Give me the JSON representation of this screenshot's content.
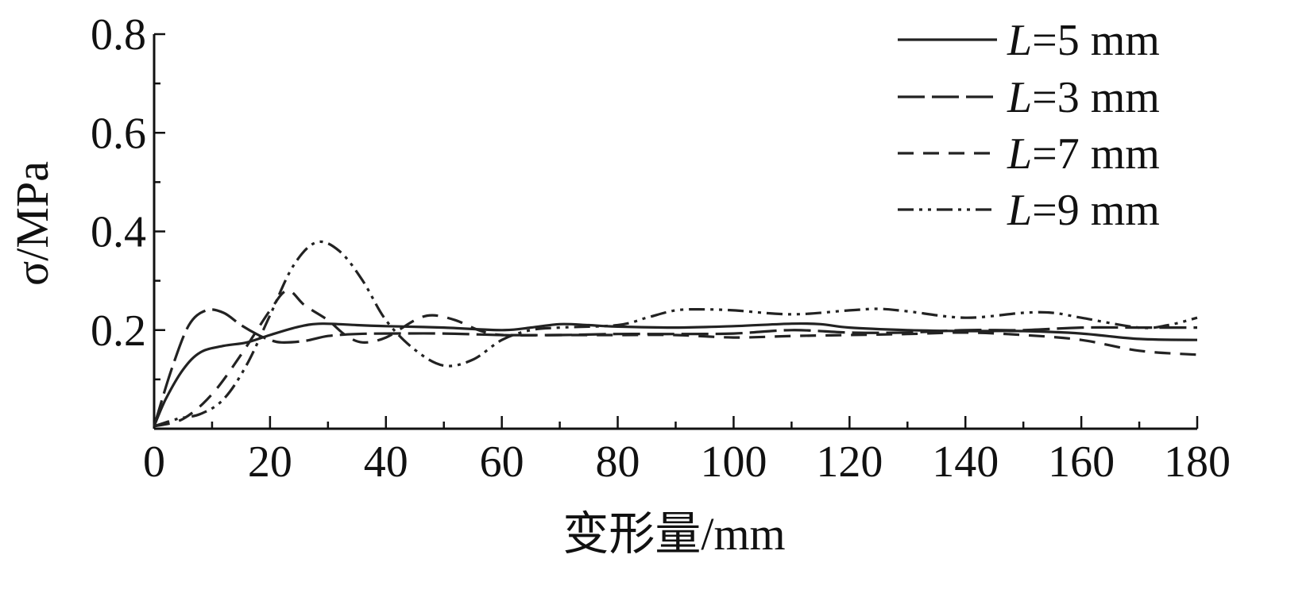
{
  "chart_data": {
    "type": "line",
    "title": "",
    "xlabel": "变形量/mm",
    "ylabel": "σ/MPa",
    "xlim": [
      0,
      180
    ],
    "ylim": [
      0,
      0.8
    ],
    "xticks": [
      0,
      20,
      40,
      60,
      80,
      100,
      120,
      140,
      160,
      180
    ],
    "xtick_labels": [
      "0",
      "20",
      "40",
      "60",
      "80",
      "100",
      "120",
      "140",
      "160",
      "180"
    ],
    "yticks": [
      0.2,
      0.4,
      0.6,
      0.8
    ],
    "ytick_labels": [
      "0.2",
      "0.4",
      "0.6",
      "0.8"
    ],
    "x_minor_step": 10,
    "y_minor_step": 0.1,
    "grid": false,
    "legend_position": "top-right",
    "series": [
      {
        "name": "L=5 mm",
        "legend_italic": "L",
        "legend_rest": "=5 mm",
        "dash": "solid",
        "points": [
          [
            0,
            0.005
          ],
          [
            2,
            0.06
          ],
          [
            5,
            0.12
          ],
          [
            8,
            0.155
          ],
          [
            12,
            0.168
          ],
          [
            16,
            0.175
          ],
          [
            20,
            0.19
          ],
          [
            25,
            0.207
          ],
          [
            29,
            0.213
          ],
          [
            35,
            0.21
          ],
          [
            40,
            0.208
          ],
          [
            50,
            0.205
          ],
          [
            60,
            0.2
          ],
          [
            65,
            0.205
          ],
          [
            70,
            0.212
          ],
          [
            75,
            0.21
          ],
          [
            80,
            0.207
          ],
          [
            90,
            0.205
          ],
          [
            100,
            0.208
          ],
          [
            110,
            0.213
          ],
          [
            115,
            0.212
          ],
          [
            120,
            0.205
          ],
          [
            130,
            0.2
          ],
          [
            140,
            0.198
          ],
          [
            150,
            0.198
          ],
          [
            160,
            0.193
          ],
          [
            170,
            0.182
          ],
          [
            180,
            0.18
          ]
        ]
      },
      {
        "name": "L=3 mm",
        "legend_italic": "L",
        "legend_rest": "=3 mm",
        "dash": "long-dash",
        "points": [
          [
            0,
            0.005
          ],
          [
            3,
            0.12
          ],
          [
            6,
            0.21
          ],
          [
            9,
            0.24
          ],
          [
            12,
            0.235
          ],
          [
            15,
            0.21
          ],
          [
            18,
            0.19
          ],
          [
            20,
            0.18
          ],
          [
            22,
            0.175
          ],
          [
            26,
            0.178
          ],
          [
            30,
            0.188
          ],
          [
            35,
            0.192
          ],
          [
            40,
            0.193
          ],
          [
            50,
            0.193
          ],
          [
            60,
            0.19
          ],
          [
            70,
            0.19
          ],
          [
            80,
            0.192
          ],
          [
            90,
            0.192
          ],
          [
            100,
            0.193
          ],
          [
            110,
            0.2
          ],
          [
            120,
            0.195
          ],
          [
            130,
            0.195
          ],
          [
            140,
            0.2
          ],
          [
            150,
            0.2
          ],
          [
            160,
            0.205
          ],
          [
            170,
            0.205
          ],
          [
            180,
            0.205
          ]
        ]
      },
      {
        "name": "L=7 mm",
        "legend_italic": "L",
        "legend_rest": "=7 mm",
        "dash": "dash",
        "points": [
          [
            0,
            0.005
          ],
          [
            5,
            0.02
          ],
          [
            10,
            0.07
          ],
          [
            15,
            0.15
          ],
          [
            20,
            0.24
          ],
          [
            23,
            0.28
          ],
          [
            26,
            0.25
          ],
          [
            30,
            0.22
          ],
          [
            33,
            0.19
          ],
          [
            36,
            0.175
          ],
          [
            40,
            0.185
          ],
          [
            45,
            0.22
          ],
          [
            48,
            0.23
          ],
          [
            52,
            0.22
          ],
          [
            56,
            0.2
          ],
          [
            60,
            0.19
          ],
          [
            70,
            0.19
          ],
          [
            80,
            0.19
          ],
          [
            90,
            0.19
          ],
          [
            100,
            0.185
          ],
          [
            110,
            0.188
          ],
          [
            120,
            0.19
          ],
          [
            130,
            0.192
          ],
          [
            140,
            0.195
          ],
          [
            150,
            0.19
          ],
          [
            160,
            0.18
          ],
          [
            170,
            0.158
          ],
          [
            180,
            0.15
          ]
        ]
      },
      {
        "name": "L=9 mm",
        "legend_italic": "L",
        "legend_rest": "=9 mm",
        "dash": "dash-dot-dot",
        "points": [
          [
            0,
            0.005
          ],
          [
            4,
            0.02
          ],
          [
            8,
            0.03
          ],
          [
            12,
            0.06
          ],
          [
            16,
            0.13
          ],
          [
            20,
            0.23
          ],
          [
            24,
            0.33
          ],
          [
            28,
            0.378
          ],
          [
            32,
            0.36
          ],
          [
            36,
            0.3
          ],
          [
            40,
            0.22
          ],
          [
            45,
            0.16
          ],
          [
            50,
            0.128
          ],
          [
            55,
            0.14
          ],
          [
            60,
            0.18
          ],
          [
            65,
            0.2
          ],
          [
            70,
            0.205
          ],
          [
            80,
            0.21
          ],
          [
            85,
            0.225
          ],
          [
            90,
            0.24
          ],
          [
            95,
            0.242
          ],
          [
            100,
            0.24
          ],
          [
            110,
            0.232
          ],
          [
            120,
            0.24
          ],
          [
            125,
            0.243
          ],
          [
            130,
            0.238
          ],
          [
            140,
            0.225
          ],
          [
            150,
            0.235
          ],
          [
            155,
            0.235
          ],
          [
            160,
            0.225
          ],
          [
            170,
            0.205
          ],
          [
            175,
            0.21
          ],
          [
            180,
            0.225
          ]
        ]
      }
    ]
  }
}
